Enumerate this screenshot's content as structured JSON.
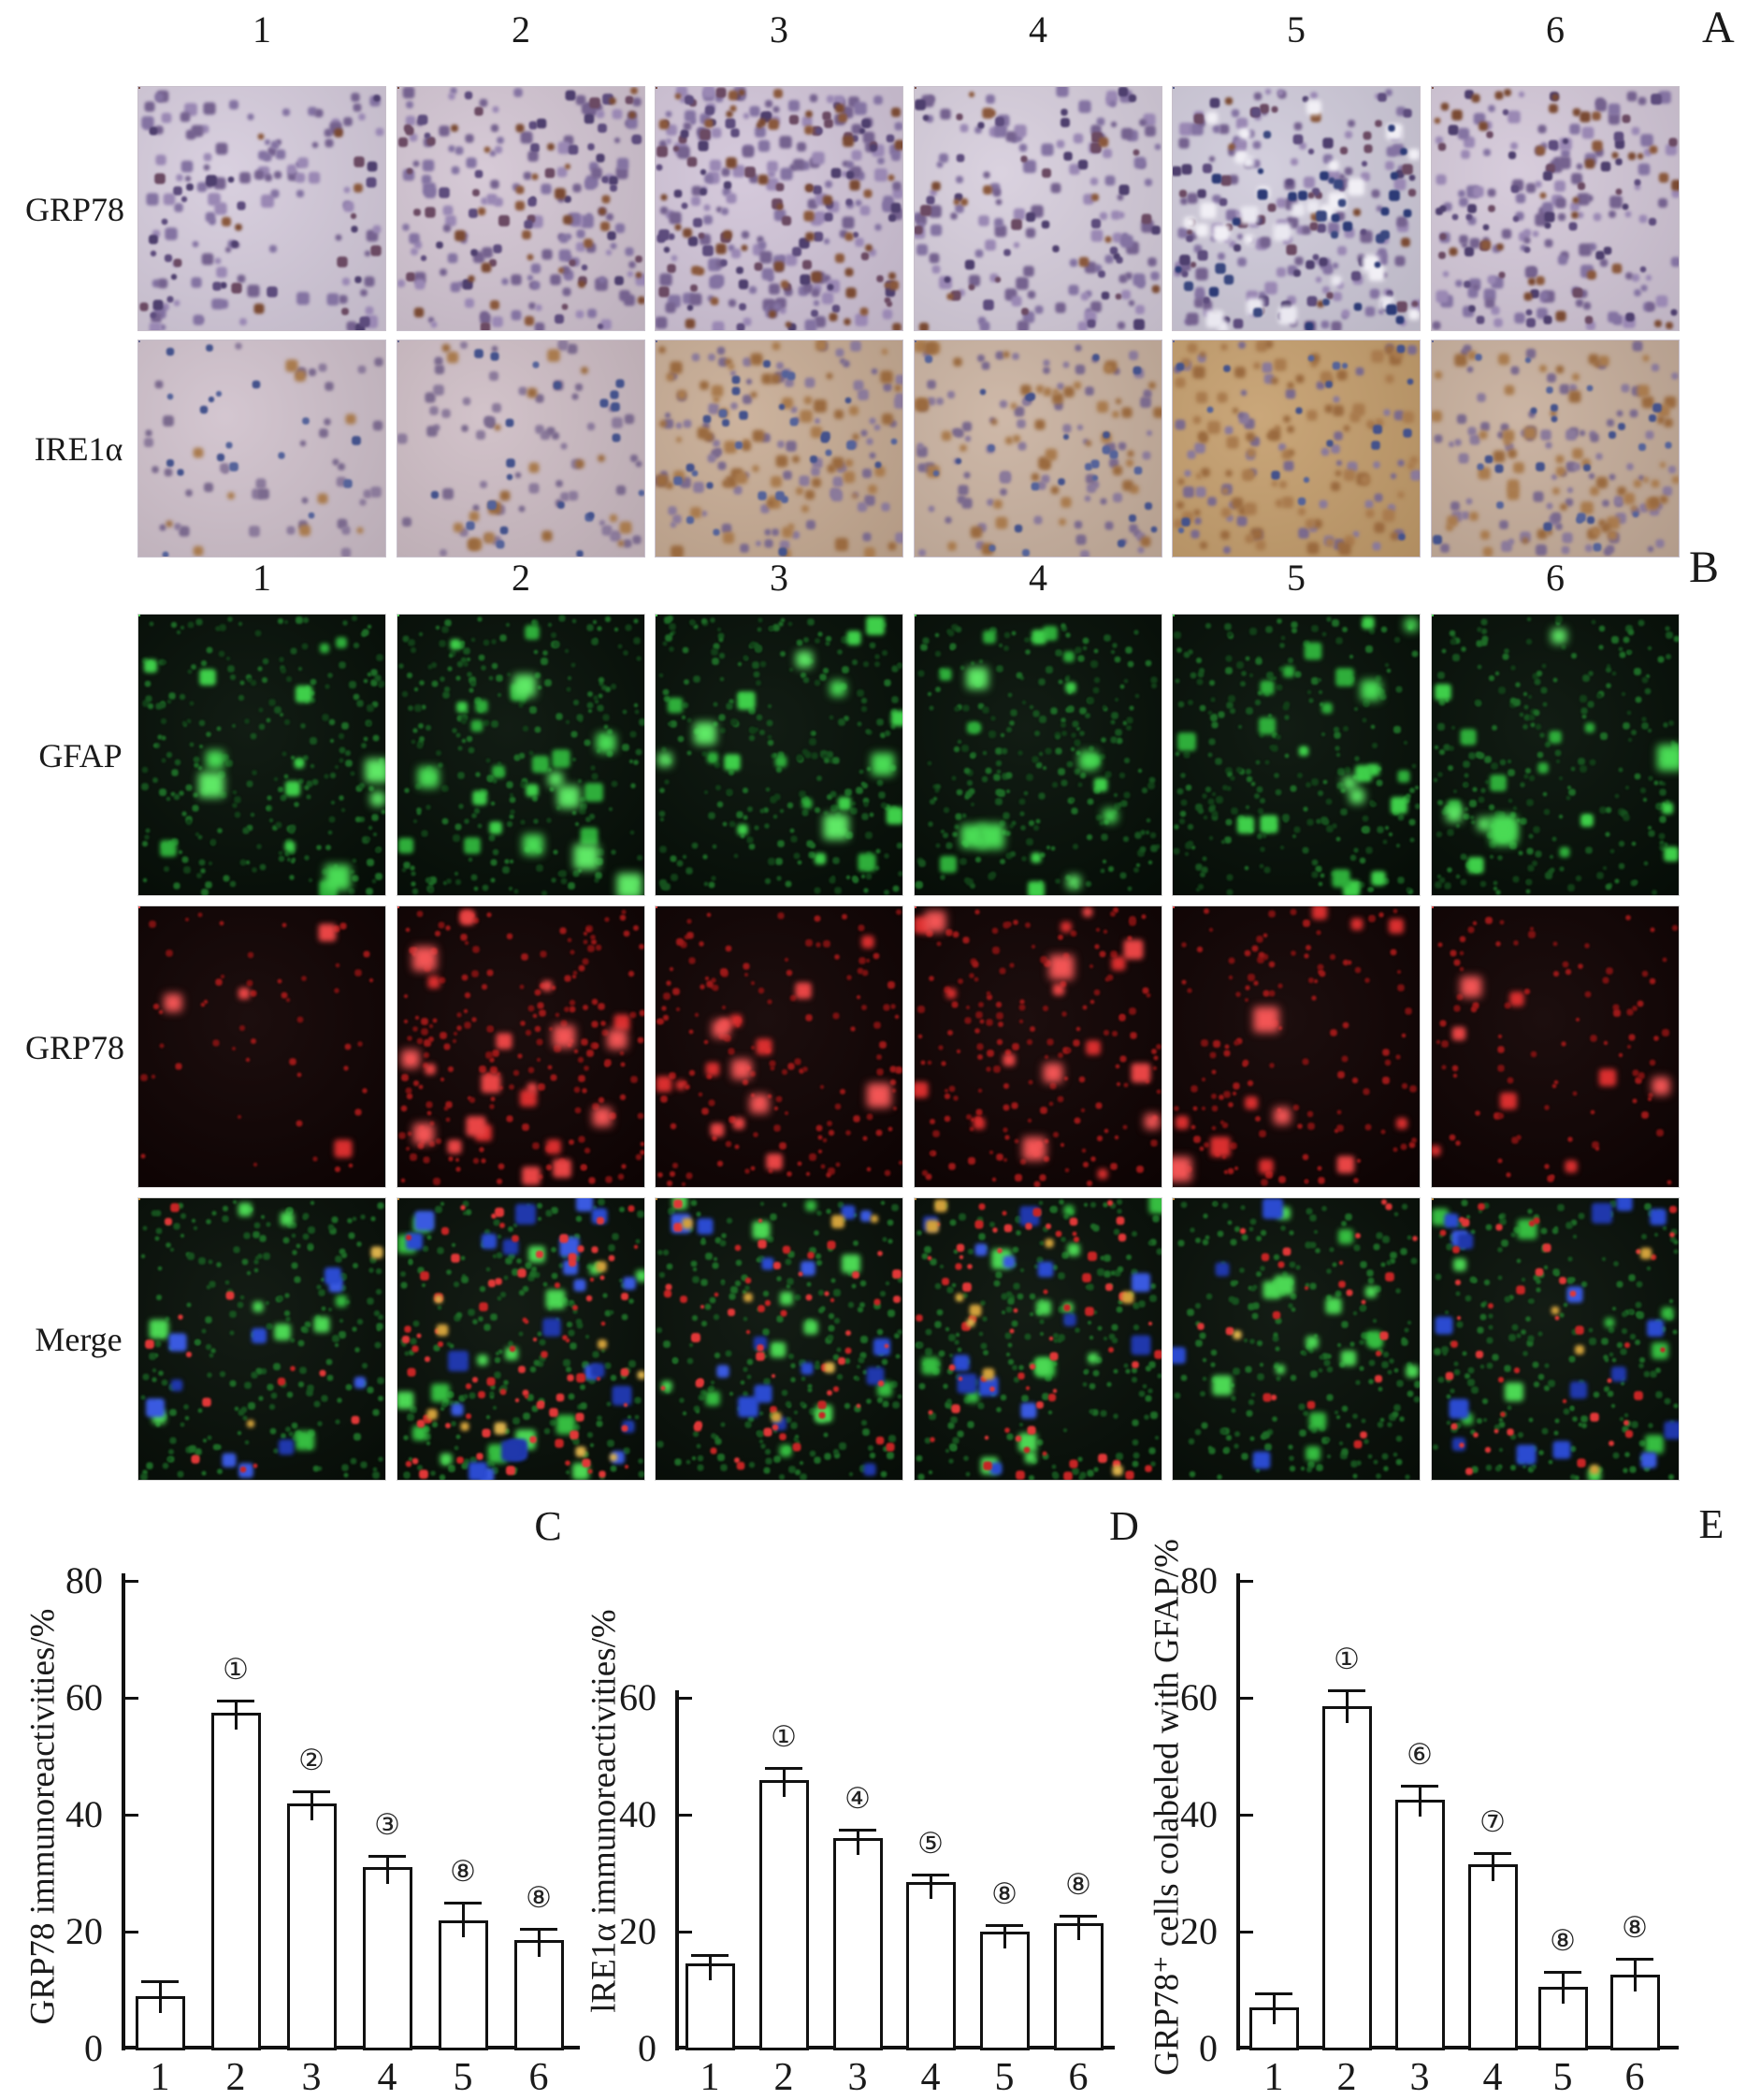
{
  "panel_a": {
    "label": "A",
    "column_labels": [
      "1",
      "2",
      "3",
      "4",
      "5",
      "6"
    ],
    "rows": [
      {
        "label": "GRP78",
        "kind": "ihc-purple",
        "stain_color": "#7a5a8e"
      },
      {
        "label": "IRE1α",
        "kind": "ihc-tan",
        "stain_color": "#a97b4e"
      }
    ]
  },
  "panel_b": {
    "label": "B",
    "column_labels": [
      "1",
      "2",
      "3",
      "4",
      "5",
      "6"
    ],
    "rows": [
      {
        "label": "GFAP",
        "kind": "fluor-green",
        "channel_color": "#3fcf4a"
      },
      {
        "label": "GRP78",
        "kind": "fluor-red",
        "channel_color": "#e03535"
      },
      {
        "label": "Merge",
        "kind": "fluor-merge",
        "channel_color": "#3a5ae0"
      }
    ]
  },
  "chart_data": [
    {
      "panel_label": "C",
      "type": "bar",
      "ylabel": "GRP78 immunoreactivities/%",
      "categories": [
        "1",
        "2",
        "3",
        "4",
        "5",
        "6"
      ],
      "values": [
        9,
        57.5,
        42,
        31,
        22,
        18.5
      ],
      "errors": [
        2.5,
        2,
        2,
        2,
        3,
        2
      ],
      "annotations": [
        "",
        "①",
        "②",
        "③",
        "⑧",
        "⑧"
      ],
      "ylim": [
        0,
        80
      ],
      "yticks": [
        0,
        20,
        40,
        60,
        80
      ]
    },
    {
      "panel_label": "D",
      "type": "bar",
      "ylabel": "lRE1α immunoreactivities/%",
      "categories": [
        "1",
        "2",
        "3",
        "4",
        "5",
        "6"
      ],
      "values": [
        14.5,
        46,
        36,
        28.5,
        20,
        21.5
      ],
      "errors": [
        1.5,
        2,
        1.5,
        1.3,
        1.2,
        1.3
      ],
      "annotations": [
        "",
        "①",
        "④",
        "⑤",
        "⑧",
        "⑧"
      ],
      "ylim": [
        0,
        60
      ],
      "yticks": [
        0,
        20,
        40,
        60
      ]
    },
    {
      "panel_label": "E",
      "type": "bar",
      "ylabel": "GRP78⁺ cells colabeled with GFAP/%",
      "categories": [
        "1",
        "2",
        "3",
        "4",
        "5",
        "6"
      ],
      "values": [
        7,
        58.5,
        42.5,
        31.5,
        10.5,
        12.7
      ],
      "errors": [
        2.5,
        2.8,
        2.5,
        2,
        2.7,
        2.7
      ],
      "annotations": [
        "",
        "①",
        "⑥",
        "⑦",
        "⑧",
        "⑧"
      ],
      "ylim": [
        0,
        80
      ],
      "yticks": [
        0,
        20,
        40,
        60,
        80
      ]
    }
  ]
}
